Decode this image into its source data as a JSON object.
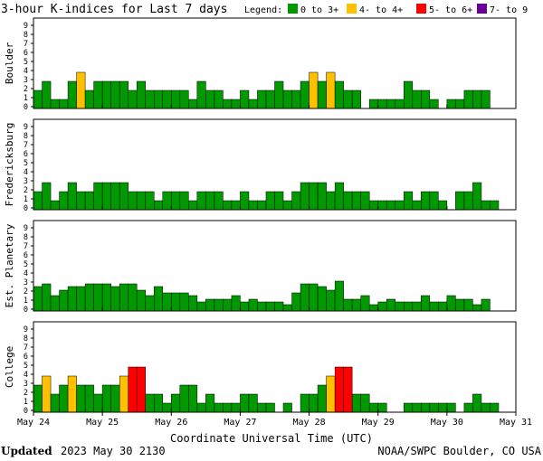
{
  "chart_data": {
    "type": "bar",
    "title": "3-hour K-indices for Last 7 days",
    "legend": {
      "label": "Legend:",
      "position": "top-right",
      "items": [
        {
          "label": "0 to 3+",
          "color": "#009900"
        },
        {
          "label": "4- to 4+",
          "color": "#ffc000"
        },
        {
          "label": "5- to 6+",
          "color": "#ff0000"
        },
        {
          "label": "7- to 9",
          "color": "#660099"
        }
      ]
    },
    "ylim": [
      0,
      9
    ],
    "y_ticks": [
      "0",
      "1",
      "2",
      "3",
      "4",
      "5",
      "6",
      "7",
      "8",
      "9"
    ],
    "x_tick_labels": [
      "May 24",
      "May 25",
      "May 26",
      "May 27",
      "May 28",
      "May 29",
      "May 30",
      "May 31"
    ],
    "xlabel": "Coordinate Universal Time (UTC)",
    "grid": false,
    "panels": [
      {
        "name": "Boulder",
        "values": [
          2,
          3,
          1,
          1,
          3,
          4,
          2,
          3,
          3,
          3,
          3,
          2,
          3,
          2,
          2,
          2,
          2,
          2,
          1,
          3,
          2,
          2,
          1,
          1,
          2,
          1,
          2,
          2,
          3,
          2,
          2,
          3,
          4,
          3,
          4,
          3,
          2,
          2,
          0,
          1,
          1,
          1,
          1,
          3,
          2,
          2,
          1,
          0,
          1,
          1,
          2,
          2,
          2,
          0
        ]
      },
      {
        "name": "Fredericksburg",
        "values": [
          2,
          3,
          1,
          2,
          3,
          2,
          2,
          3,
          3,
          3,
          3,
          2,
          2,
          2,
          1,
          2,
          2,
          2,
          1,
          2,
          2,
          2,
          1,
          1,
          2,
          1,
          1,
          2,
          2,
          1,
          2,
          3,
          3,
          3,
          2,
          3,
          2,
          2,
          2,
          1,
          1,
          1,
          1,
          2,
          1,
          2,
          2,
          1,
          0,
          2,
          2,
          3,
          1,
          1,
          0
        ]
      },
      {
        "name": "Est. Planetary",
        "values": [
          2.7,
          3,
          1.7,
          2.3,
          2.7,
          2.7,
          3,
          3,
          3,
          2.7,
          3,
          3,
          2.3,
          1.7,
          2.7,
          2,
          2,
          2,
          1.7,
          1,
          1.3,
          1.3,
          1.3,
          1.7,
          1,
          1.3,
          1,
          1,
          1,
          0.7,
          2,
          3,
          3,
          2.7,
          2.3,
          3.3,
          1.3,
          1.3,
          1.7,
          0.7,
          1,
          1.3,
          1,
          1,
          1,
          1.7,
          1,
          1,
          1.7,
          1.3,
          1.3,
          0.7,
          1.3
        ]
      },
      {
        "name": "College",
        "values": [
          3,
          4,
          2,
          3,
          4,
          3,
          3,
          2,
          3,
          3,
          4,
          5,
          5,
          2,
          2,
          1,
          2,
          3,
          3,
          1,
          2,
          1,
          1,
          1,
          2,
          2,
          1,
          1,
          0,
          1,
          0,
          2,
          2,
          3,
          4,
          5,
          5,
          2,
          2,
          1,
          1,
          0,
          0,
          1,
          1,
          1,
          1,
          1,
          1,
          0,
          1,
          2,
          1,
          1,
          0
        ]
      }
    ]
  },
  "footer": {
    "updated_label": "Updated",
    "updated_value": "2023 May 30 2130",
    "credit": "NOAA/SWPC Boulder, CO USA"
  }
}
